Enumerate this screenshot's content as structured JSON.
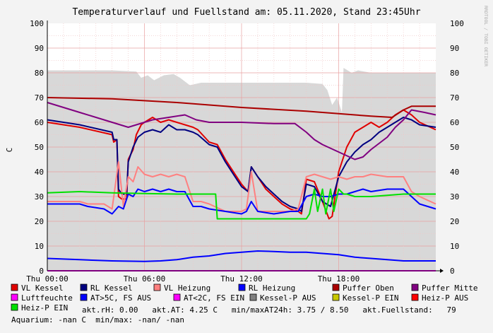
{
  "chart_data": {
    "type": "line",
    "title": "Temperaturverlauf und Fuellstand am: 05.11.2020, Stand 23:45Uhr",
    "watermark": "RRDTOOL / TOBI OETIKER",
    "ylabel": "C",
    "ylim": [
      0,
      100
    ],
    "yticks": [
      "0",
      "10",
      "20",
      "30",
      "40",
      "50",
      "60",
      "70",
      "80",
      "90",
      "100"
    ],
    "xlim": [
      0,
      24
    ],
    "xticks": [
      {
        "x": 0,
        "label": "Thu 00:00"
      },
      {
        "x": 6,
        "label": "Thu 06:00"
      },
      {
        "x": 12,
        "label": "Thu 12:00"
      },
      {
        "x": 18,
        "label": "Thu 18:00"
      }
    ],
    "grid": true,
    "area_series": {
      "name": "akt.Fuellstand",
      "color": "#d8d8d8",
      "points": [
        [
          0,
          81
        ],
        [
          4,
          81
        ],
        [
          5.5,
          80.5
        ],
        [
          5.8,
          78
        ],
        [
          6.2,
          79
        ],
        [
          6.6,
          77
        ],
        [
          7.2,
          79
        ],
        [
          7.8,
          79.5
        ],
        [
          8.2,
          78
        ],
        [
          8.8,
          75
        ],
        [
          9.5,
          76
        ],
        [
          10.5,
          76
        ],
        [
          12,
          76
        ],
        [
          14,
          76
        ],
        [
          16,
          76
        ],
        [
          17,
          75.5
        ],
        [
          17.3,
          73
        ],
        [
          17.6,
          67
        ],
        [
          17.9,
          70
        ],
        [
          18.2,
          64
        ],
        [
          18.3,
          82
        ],
        [
          18.8,
          80
        ],
        [
          19.2,
          81
        ],
        [
          20,
          80
        ],
        [
          22,
          80
        ],
        [
          24,
          80
        ]
      ]
    },
    "series": [
      {
        "name": "VL Kessel",
        "color": "#e00000",
        "points": [
          [
            0,
            60
          ],
          [
            2,
            58
          ],
          [
            4,
            55
          ],
          [
            4.1,
            52
          ],
          [
            4.3,
            53
          ],
          [
            4.4,
            30
          ],
          [
            4.6,
            29
          ],
          [
            4.9,
            29
          ],
          [
            5,
            45
          ],
          [
            5.3,
            49
          ],
          [
            5.5,
            55
          ],
          [
            5.8,
            59
          ],
          [
            6,
            60
          ],
          [
            6.5,
            62
          ],
          [
            7,
            60
          ],
          [
            7.5,
            61
          ],
          [
            8,
            60
          ],
          [
            8.5,
            59
          ],
          [
            9,
            58
          ],
          [
            9.3,
            57
          ],
          [
            10,
            52
          ],
          [
            10.5,
            51
          ],
          [
            11,
            45
          ],
          [
            11.5,
            40
          ],
          [
            12,
            35
          ],
          [
            12.4,
            32
          ],
          [
            12.6,
            42
          ],
          [
            13,
            38
          ],
          [
            13.5,
            33
          ],
          [
            14,
            30
          ],
          [
            14.5,
            27
          ],
          [
            15,
            25
          ],
          [
            15.5,
            24
          ],
          [
            15.7,
            23
          ],
          [
            16,
            37
          ],
          [
            16.5,
            36
          ],
          [
            17,
            28
          ],
          [
            17.4,
            21
          ],
          [
            17.6,
            22
          ],
          [
            18,
            40
          ],
          [
            18.5,
            50
          ],
          [
            19,
            56
          ],
          [
            19.5,
            58
          ],
          [
            20,
            60
          ],
          [
            20.5,
            58
          ],
          [
            21,
            60
          ],
          [
            21.5,
            63
          ],
          [
            22,
            65
          ],
          [
            22.5,
            63
          ],
          [
            23,
            60
          ],
          [
            24,
            57
          ]
        ]
      },
      {
        "name": "RL Kessel",
        "color": "#000080",
        "points": [
          [
            0,
            61
          ],
          [
            2,
            59
          ],
          [
            4,
            56
          ],
          [
            4.1,
            53
          ],
          [
            4.3,
            53
          ],
          [
            4.4,
            33
          ],
          [
            4.6,
            31
          ],
          [
            4.9,
            31
          ],
          [
            5,
            44
          ],
          [
            5.3,
            50
          ],
          [
            5.6,
            54
          ],
          [
            6,
            56
          ],
          [
            6.5,
            57
          ],
          [
            7,
            56
          ],
          [
            7.5,
            59
          ],
          [
            8,
            57
          ],
          [
            8.5,
            57
          ],
          [
            9,
            56
          ],
          [
            9.3,
            55
          ],
          [
            10,
            51
          ],
          [
            10.5,
            50
          ],
          [
            11,
            44
          ],
          [
            11.5,
            39
          ],
          [
            12,
            34
          ],
          [
            12.4,
            32
          ],
          [
            12.6,
            42
          ],
          [
            13,
            38
          ],
          [
            13.5,
            34
          ],
          [
            14,
            31
          ],
          [
            14.5,
            28
          ],
          [
            15,
            26
          ],
          [
            15.5,
            25
          ],
          [
            15.7,
            24
          ],
          [
            16,
            35
          ],
          [
            16.5,
            34
          ],
          [
            17,
            28
          ],
          [
            17.5,
            26
          ],
          [
            18,
            38
          ],
          [
            18.5,
            44
          ],
          [
            19,
            48
          ],
          [
            19.5,
            51
          ],
          [
            20,
            53
          ],
          [
            20.5,
            56
          ],
          [
            21,
            58
          ],
          [
            21.5,
            60
          ],
          [
            22,
            62
          ],
          [
            22.5,
            61
          ],
          [
            23,
            59
          ],
          [
            24,
            58
          ]
        ]
      },
      {
        "name": "VL Heizung",
        "color": "#ff8080",
        "points": [
          [
            0,
            28
          ],
          [
            2,
            28
          ],
          [
            2.5,
            27
          ],
          [
            3.5,
            27
          ],
          [
            4,
            25
          ],
          [
            4.4,
            44
          ],
          [
            4.7,
            26
          ],
          [
            5,
            38
          ],
          [
            5.3,
            36
          ],
          [
            5.6,
            42
          ],
          [
            6,
            39
          ],
          [
            6.5,
            38
          ],
          [
            7,
            39
          ],
          [
            7.5,
            38
          ],
          [
            8,
            39
          ],
          [
            8.5,
            38
          ],
          [
            9,
            28
          ],
          [
            9.5,
            28
          ],
          [
            10,
            27
          ],
          [
            11,
            24
          ],
          [
            12,
            24
          ],
          [
            12.3,
            25
          ],
          [
            12.6,
            40
          ],
          [
            13,
            24
          ],
          [
            14,
            24
          ],
          [
            15,
            24
          ],
          [
            15.5,
            25
          ],
          [
            16,
            38
          ],
          [
            16.5,
            39
          ],
          [
            17,
            38
          ],
          [
            17.5,
            37
          ],
          [
            18,
            38
          ],
          [
            18.5,
            37
          ],
          [
            19,
            38
          ],
          [
            19.5,
            38
          ],
          [
            20,
            39
          ],
          [
            21,
            38
          ],
          [
            22,
            38
          ],
          [
            22.5,
            32
          ],
          [
            23,
            30
          ],
          [
            24,
            27
          ]
        ]
      },
      {
        "name": "RL Heizung",
        "color": "#0000ff",
        "points": [
          [
            0,
            27
          ],
          [
            2,
            27
          ],
          [
            2.5,
            26
          ],
          [
            3.5,
            25
          ],
          [
            4,
            23
          ],
          [
            4.4,
            26
          ],
          [
            4.7,
            25
          ],
          [
            5,
            31
          ],
          [
            5.3,
            30
          ],
          [
            5.6,
            33
          ],
          [
            6,
            32
          ],
          [
            6.5,
            33
          ],
          [
            7,
            32
          ],
          [
            7.5,
            33
          ],
          [
            8,
            32
          ],
          [
            8.5,
            32
          ],
          [
            9,
            26
          ],
          [
            9.5,
            26
          ],
          [
            10,
            25
          ],
          [
            11,
            24
          ],
          [
            12,
            23
          ],
          [
            12.3,
            24
          ],
          [
            12.6,
            28
          ],
          [
            13,
            24
          ],
          [
            14,
            23
          ],
          [
            15,
            24
          ],
          [
            15.5,
            24
          ],
          [
            16,
            30
          ],
          [
            16.5,
            31
          ],
          [
            17,
            30
          ],
          [
            17.5,
            30
          ],
          [
            18,
            31
          ],
          [
            18.5,
            31
          ],
          [
            19,
            32
          ],
          [
            19.5,
            33
          ],
          [
            20,
            32
          ],
          [
            21,
            33
          ],
          [
            22,
            33
          ],
          [
            22.5,
            30
          ],
          [
            23,
            27
          ],
          [
            24,
            25
          ]
        ]
      },
      {
        "name": "Puffer Oben",
        "color": "#aa0000",
        "points": [
          [
            0,
            70
          ],
          [
            4,
            69.5
          ],
          [
            8,
            68
          ],
          [
            12,
            66
          ],
          [
            16,
            64.5
          ],
          [
            18,
            63.5
          ],
          [
            20,
            62.5
          ],
          [
            21.3,
            62
          ],
          [
            22,
            65
          ],
          [
            22.5,
            66.5
          ],
          [
            24,
            66.5
          ]
        ]
      },
      {
        "name": "Puffer Mitte",
        "color": "#800080",
        "points": [
          [
            0,
            68
          ],
          [
            2,
            64
          ],
          [
            4,
            60
          ],
          [
            5,
            58
          ],
          [
            5.5,
            59
          ],
          [
            6.5,
            61
          ],
          [
            7.5,
            62
          ],
          [
            8.5,
            63
          ],
          [
            9.2,
            61
          ],
          [
            10,
            60
          ],
          [
            12,
            60
          ],
          [
            14,
            59.5
          ],
          [
            15.3,
            59.5
          ],
          [
            16,
            56
          ],
          [
            16.5,
            53
          ],
          [
            17,
            51
          ],
          [
            18,
            48
          ],
          [
            19,
            45
          ],
          [
            19.5,
            46
          ],
          [
            20,
            49
          ],
          [
            21,
            54
          ],
          [
            21.5,
            58
          ],
          [
            22,
            61
          ],
          [
            22.5,
            65
          ],
          [
            23.3,
            64
          ],
          [
            24,
            63
          ]
        ]
      },
      {
        "name": "Luftfeuchte",
        "color": "#ff00ff",
        "points": [
          [
            0,
            0
          ],
          [
            24,
            0
          ]
        ]
      },
      {
        "name": "AT>5C, FS AUS",
        "color": "#0000ff",
        "points": [
          [
            0,
            5
          ],
          [
            2,
            4.5
          ],
          [
            4,
            4
          ],
          [
            6,
            3.8
          ],
          [
            7,
            4
          ],
          [
            8,
            4.5
          ],
          [
            9,
            5.5
          ],
          [
            10,
            6
          ],
          [
            11,
            7
          ],
          [
            12,
            7.5
          ],
          [
            13,
            8
          ],
          [
            14,
            7.8
          ],
          [
            15,
            7.5
          ],
          [
            16,
            7.5
          ],
          [
            17,
            7
          ],
          [
            18,
            6.5
          ],
          [
            19,
            5.5
          ],
          [
            20,
            5
          ],
          [
            21,
            4.5
          ],
          [
            22,
            4
          ],
          [
            24,
            4
          ]
        ]
      },
      {
        "name": "AT<2C, FS EIN",
        "color": "#ff00ff",
        "points": []
      },
      {
        "name": "Kessel-P AUS",
        "color": "#808080",
        "points": []
      },
      {
        "name": "Kessel-P EIN",
        "color": "#c8c800",
        "points": []
      },
      {
        "name": "Heiz-P AUS",
        "color": "#ff0000",
        "points": []
      },
      {
        "name": "Heiz-P EIN",
        "color": "#00e000",
        "points": [
          [
            0,
            31.5
          ],
          [
            2,
            32
          ],
          [
            4,
            31.5
          ],
          [
            6,
            31.2
          ],
          [
            8,
            31
          ],
          [
            10,
            31
          ],
          [
            10.4,
            31
          ],
          [
            10.5,
            21
          ],
          [
            12,
            21
          ],
          [
            14,
            21
          ],
          [
            16,
            21
          ],
          [
            16.2,
            23
          ],
          [
            16.5,
            33
          ],
          [
            16.7,
            24
          ],
          [
            17,
            33
          ],
          [
            17.2,
            23
          ],
          [
            17.5,
            33
          ],
          [
            17.7,
            24
          ],
          [
            18,
            33
          ],
          [
            18.3,
            31
          ],
          [
            18.5,
            31
          ],
          [
            19,
            30
          ],
          [
            20,
            30
          ],
          [
            22,
            31
          ],
          [
            24,
            31
          ]
        ]
      }
    ],
    "legend": [
      {
        "name": "VL Kessel",
        "color": "#e00000"
      },
      {
        "name": "RL Kessel",
        "color": "#000080"
      },
      {
        "name": "VL Heizung",
        "color": "#ff8080"
      },
      {
        "name": "RL Heizung",
        "color": "#0000ff"
      },
      {
        "name": "Puffer Oben",
        "color": "#aa0000"
      },
      {
        "name": "Puffer Mitte",
        "color": "#800080"
      },
      {
        "name": "Luftfeuchte",
        "color": "#ff00ff"
      },
      {
        "name": "AT>5C, FS AUS",
        "color": "#0000ff"
      },
      {
        "name": "AT<2C, FS EIN",
        "color": "#ff00ff"
      },
      {
        "name": "Kessel-P AUS",
        "color": "#808080"
      },
      {
        "name": "Kessel-P EIN",
        "color": "#c8c800"
      },
      {
        "name": "Heiz-P AUS",
        "color": "#ff0000"
      },
      {
        "name": "Heiz-P EIN",
        "color": "#00e000"
      }
    ],
    "stats_line": "akt.rH: 0.00   akt.AT: 4.25 C   min/maxAT24h: 3.75 / 8.50   akt.Fuellstand:   79",
    "aquarium_line": "Aquarium: -nan C  min/max: -nan/ -nan"
  }
}
